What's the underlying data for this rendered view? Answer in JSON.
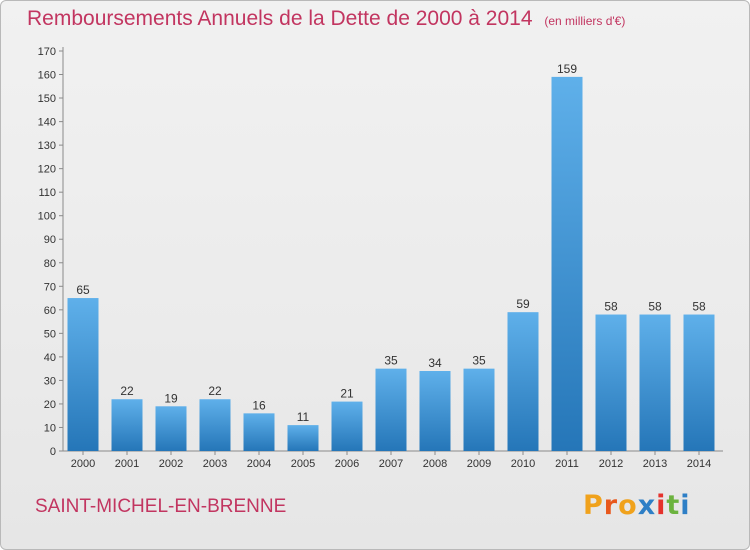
{
  "header": {
    "title": "Remboursements Annuels de la Dette de 2000 à 2014",
    "unit": "(en milliers d'€)"
  },
  "footer": {
    "town": "SAINT-MICHEL-EN-BRENNE",
    "logo": {
      "letters": [
        "P",
        "r",
        "o",
        "x",
        "i",
        "t",
        "i"
      ],
      "colors": [
        "#f0a21c",
        "#e8581c",
        "#f0a21c",
        "#2e7fc6",
        "#e5322c",
        "#6cb33f",
        "#2e7fc6"
      ]
    }
  },
  "chart_data": {
    "type": "bar",
    "categories": [
      "2000",
      "2001",
      "2002",
      "2003",
      "2004",
      "2005",
      "2006",
      "2007",
      "2008",
      "2009",
      "2010",
      "2011",
      "2012",
      "2013",
      "2014"
    ],
    "values": [
      65,
      22,
      19,
      22,
      16,
      11,
      21,
      35,
      34,
      35,
      59,
      159,
      58,
      58,
      58
    ],
    "ylim": [
      0,
      170
    ],
    "yticks": [
      0,
      10,
      20,
      30,
      40,
      50,
      60,
      70,
      80,
      90,
      100,
      110,
      120,
      130,
      140,
      150,
      160,
      170
    ],
    "grid": false,
    "data_labels": true,
    "bar_color": "#3d93d6",
    "xlabel": "",
    "ylabel": ""
  }
}
